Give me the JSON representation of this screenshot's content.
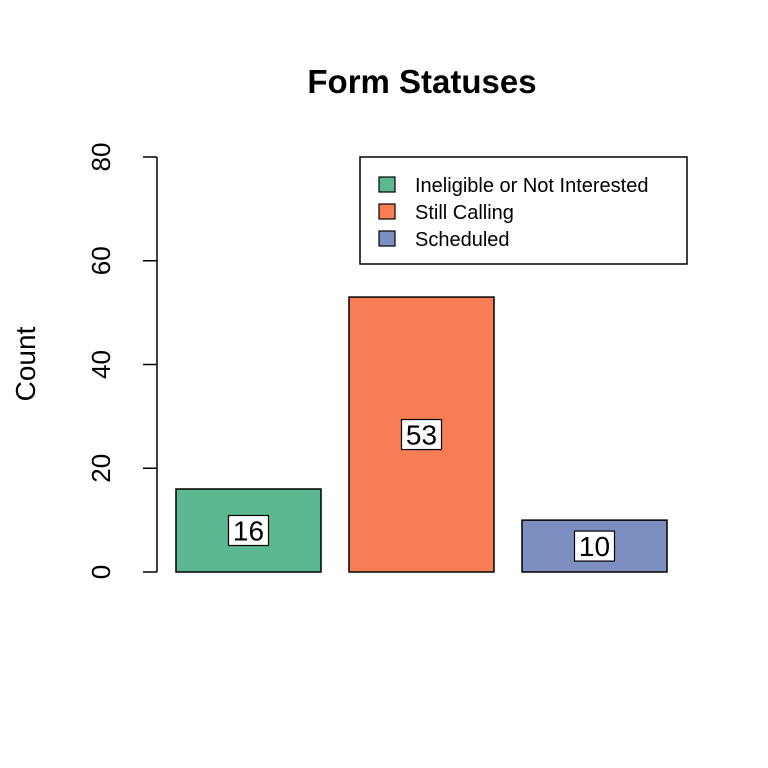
{
  "chart_data": {
    "type": "bar",
    "title": "Form Statuses",
    "ylabel": "Count",
    "xlabel": "",
    "ylim": [
      0,
      80
    ],
    "yticks": [
      0,
      20,
      40,
      60,
      80
    ],
    "categories": [
      "Ineligible or Not Interested",
      "Still Calling",
      "Scheduled"
    ],
    "values": [
      16,
      53,
      10
    ],
    "colors": [
      "#5BB891",
      "#F87C54",
      "#7C8FC0"
    ],
    "grid": false,
    "legend_position": "top-right",
    "data_labels": true
  }
}
